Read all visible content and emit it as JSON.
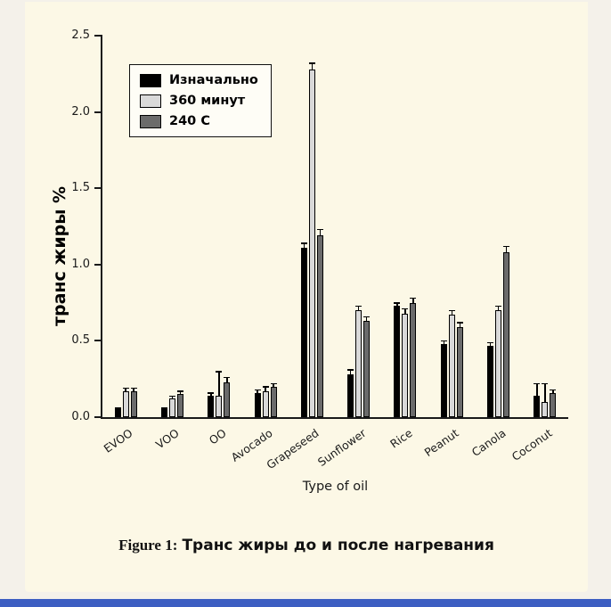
{
  "colors": {
    "panel_bg": "#fcf8e6",
    "page_bg": "#f4f1ea",
    "accent_bar": "#3c5ec2",
    "axis": "#1a1a1a"
  },
  "chart_data": {
    "type": "bar",
    "caption_prefix": "Figure 1:",
    "caption_text": "Транс жиры до и после нагревания",
    "xlabel": "Type of oil",
    "ylabel": "транс жиры %",
    "ylim": [
      0,
      2.5
    ],
    "yticks": [
      0,
      0.5,
      1.0,
      1.5,
      2.0,
      2.5
    ],
    "ytick_labels": [
      "0.0",
      "0.5",
      "1.0",
      "1.5",
      "2.0",
      "2.5"
    ],
    "categories": [
      "EVOO",
      "VOO",
      "OO",
      "Avocado",
      "Grapeseed",
      "Sunflower",
      "Rice",
      "Peanut",
      "Canola",
      "Coconut"
    ],
    "series": [
      {
        "name": "Изначально",
        "color": "#000000",
        "values": [
          0.05,
          0.05,
          0.14,
          0.16,
          1.11,
          0.28,
          0.73,
          0.48,
          0.47,
          0.14
        ],
        "errors": [
          0.01,
          0.01,
          0.02,
          0.02,
          0.03,
          0.03,
          0.02,
          0.02,
          0.02,
          0.08
        ]
      },
      {
        "name": "360 минут",
        "color": "#d9d9d9",
        "values": [
          0.17,
          0.12,
          0.14,
          0.17,
          2.28,
          0.7,
          0.68,
          0.67,
          0.7,
          0.1
        ],
        "errors": [
          0.02,
          0.02,
          0.16,
          0.03,
          0.04,
          0.03,
          0.03,
          0.03,
          0.03,
          0.12
        ]
      },
      {
        "name": "240 C",
        "color": "#6b6b6b",
        "values": [
          0.17,
          0.15,
          0.23,
          0.2,
          1.19,
          0.63,
          0.75,
          0.59,
          1.08,
          0.16
        ],
        "errors": [
          0.02,
          0.02,
          0.03,
          0.02,
          0.04,
          0.03,
          0.03,
          0.03,
          0.04,
          0.02
        ]
      }
    ],
    "legend_position": "top-left",
    "grid": false
  }
}
